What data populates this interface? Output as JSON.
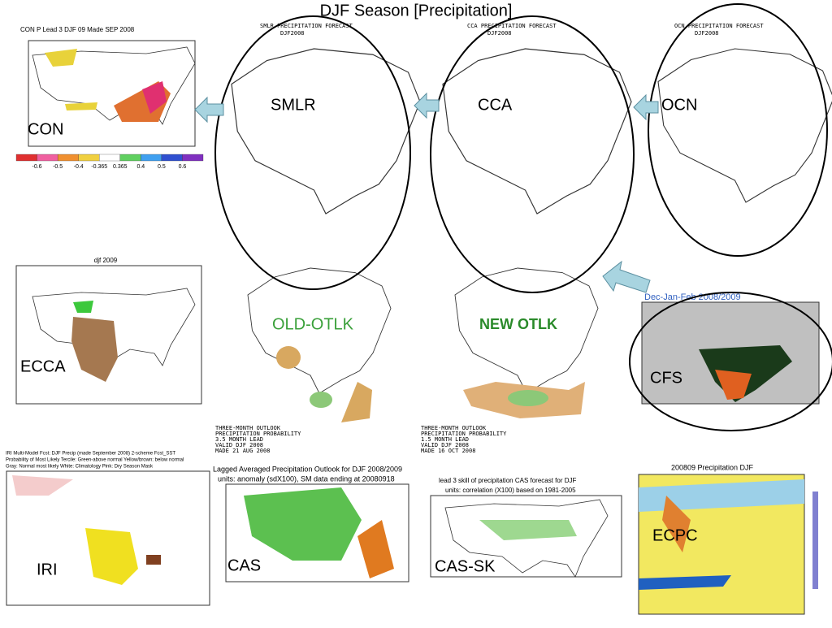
{
  "title": "DJF Season [Precipitation]",
  "panels": {
    "con": {
      "label": "CON",
      "header": "CON P  Lead 3 DJF 09 Made SEP 2008",
      "scale": [
        "-0.6",
        "-0.5",
        "-0.4",
        "-0.365",
        "0.365",
        "0.4",
        "0.5",
        "0.6"
      ]
    },
    "smlr": {
      "label": "SMLR",
      "header": [
        "SMLR PRECIPITATION FORECAST",
        "DJF2008"
      ]
    },
    "cca": {
      "label": "CCA",
      "header": [
        "CCA PRECIPITATION FORECAST",
        "DJF2008"
      ]
    },
    "ocn": {
      "label": "OCN",
      "header": [
        "OCN PRECIPITATION FORECAST",
        "DJF2008"
      ]
    },
    "ecca": {
      "label": "ECCA",
      "header": "djf 2009"
    },
    "old": {
      "label": "OLD-OTLK",
      "notes": [
        "THREE-MONTH OUTLOOK",
        "PRECIPITATION PROBABILITY",
        "3.5 MONTH LEAD",
        "VALID DJF 2008",
        "MADE 21 AUG 2008"
      ]
    },
    "new": {
      "label": "NEW OTLK",
      "notes": [
        "THREE-MONTH OUTLOOK",
        "PRECIPITATION PROBABILITY",
        "1.5 MONTH LEAD",
        "VALID DJF 2008",
        "MADE 16 OCT 2008"
      ]
    },
    "cfs": {
      "label": "CFS",
      "header": "Dec-Jan-Feb 2008/2009"
    },
    "iri": {
      "label": "IRI",
      "header": [
        "IRI Multi-Model Fcst: DJF Precip (made September 2008)   2-scheme Fcst_SST",
        "Probability of Most Likely Tercile: Green-above normal  Yellow/brown: below normal",
        "Gray: Normal most likely      White: Climatology      Pink: Dry Season Mask"
      ]
    },
    "cas": {
      "label": "CAS",
      "header": [
        "Lagged Averaged Precipitation Outlook for DJF 2008/2009",
        "units: anomaly (sdX100), SM data ending at 20080918"
      ]
    },
    "cassk": {
      "label": "CAS-SK",
      "header": [
        "lead 3 skill of precipitation CAS forecast for DJF",
        "units: correlation (X100) based on 1981-2005"
      ]
    },
    "ecpc": {
      "label": "ECPC",
      "header": "200809     Precipitation     DJF"
    }
  }
}
